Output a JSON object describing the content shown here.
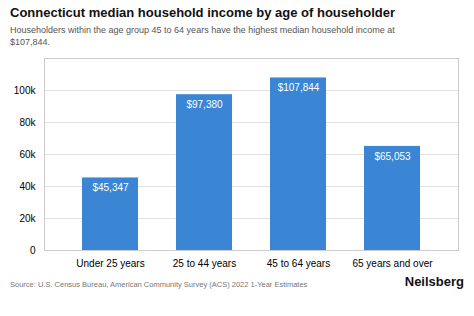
{
  "chart_data": {
    "type": "bar",
    "title": "Connecticut median household income by age of householder",
    "subtitle": "Householders within the age group 45 to 64 years have the highest median household income at\n$107,844.",
    "categories": [
      "Under 25 years",
      "25 to 44 years",
      "45 to 64 years",
      "65 years and over"
    ],
    "values": [
      45347,
      97380,
      107844,
      65053
    ],
    "value_labels": [
      "$45,347",
      "$97,380",
      "$107,844",
      "$65,053"
    ],
    "data_labels": true,
    "color": "#3a86d4",
    "ylim": [
      0,
      120000
    ],
    "yticks": [
      0,
      {
        "value": 20000,
        "label": "20k"
      },
      {
        "value": 40000,
        "label": "40k"
      },
      {
        "value": 60000,
        "label": "60k"
      },
      {
        "value": 80000,
        "label": "80k"
      },
      {
        "value": 100000,
        "label": "100k"
      }
    ],
    "grid": true,
    "source": "Source: U.S. Census Bureau, American Community Survey (ACS) 2022 1-Year Estimates",
    "brand": "Neilsberg"
  }
}
